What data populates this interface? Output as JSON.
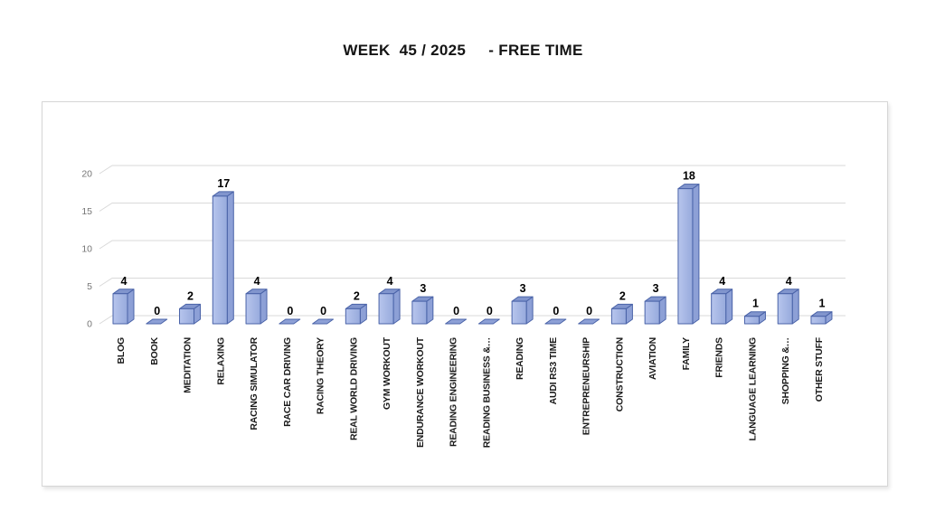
{
  "chart_data": {
    "type": "bar",
    "style": "3d-bar",
    "title": "WEEK  45 / 2025     - FREE TIME",
    "categories": [
      "BLOG",
      "BOOK",
      "MEDITATION",
      "RELAXING",
      "RACING SIMULATOR",
      "RACE CAR DRIVING",
      "RACING THEORY",
      "REAL WORLD DRIVING",
      "GYM WORKOUT",
      "ENDURANCE WORKOUT",
      "READING ENGINEERING",
      "READING BUSINESS &…",
      "READING",
      "AUDI RS3 TIME",
      "ENTREPRENEURSHIP",
      "CONSTRUCTION",
      "AVIATION",
      "FAMILY",
      "FRIENDS",
      "LANGUAGE LEARNING",
      "SHOPPING &…",
      "OTHER STUFF"
    ],
    "values": [
      4,
      0,
      2,
      17,
      4,
      0,
      0,
      2,
      4,
      3,
      0,
      0,
      3,
      0,
      0,
      2,
      3,
      18,
      4,
      1,
      4,
      1
    ],
    "xlabel": "",
    "ylabel": "",
    "ylim": [
      0,
      20
    ],
    "yticks": [
      0,
      5,
      10,
      15,
      20
    ],
    "grid": true,
    "legend": "none",
    "data_labels": true,
    "colors": {
      "bar_front_light": "#b7c5ed",
      "bar_front_dark": "#97aadc",
      "bar_top": "#8195cd",
      "bar_side": "#8da0d6",
      "bar_stroke": "#4a63a8",
      "gridline": "#d9d9d9",
      "tick_label": "#757575",
      "value_label": "#000000",
      "category_label": "#1a1a1a",
      "title_color": "#141414",
      "frame_border": "#d6d6d6",
      "background": "#ffffff"
    }
  }
}
